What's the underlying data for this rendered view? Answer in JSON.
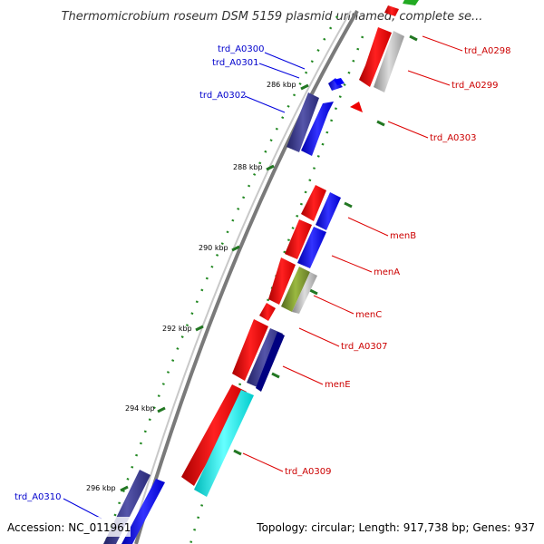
{
  "title": "Thermomicrobium roseum DSM 5159 plasmid unnamed, complete se...",
  "footer": {
    "accession": "Accession: NC_011961",
    "summary": "Topology: circular; Length: 917,738 bp; Genes: 937"
  },
  "ticks": [
    "286 kbp",
    "288 kbp",
    "290 kbp",
    "292 kbp",
    "294 kbp",
    "296 kbp"
  ],
  "genes_right": [
    "trd_A0298",
    "trd_A0299",
    "trd_A0303",
    "menB",
    "menA",
    "menC",
    "trd_A0307",
    "menE",
    "trd_A0309"
  ],
  "genes_left": [
    "trd_A0300",
    "trd_A0301",
    "trd_A0302",
    "trd_A0310"
  ],
  "colors": {
    "forward_cds": "#ff0000",
    "reverse_blue": "#0000ff",
    "reverse_navy": "#333399",
    "gray": "#b0b0b0",
    "olive": "#7a9a30",
    "cyan": "#00ffff",
    "green": "#22aa22",
    "label_red": "#cc0000",
    "label_blue": "#0000cc",
    "backbone": "#808080",
    "tick": "#227722"
  }
}
